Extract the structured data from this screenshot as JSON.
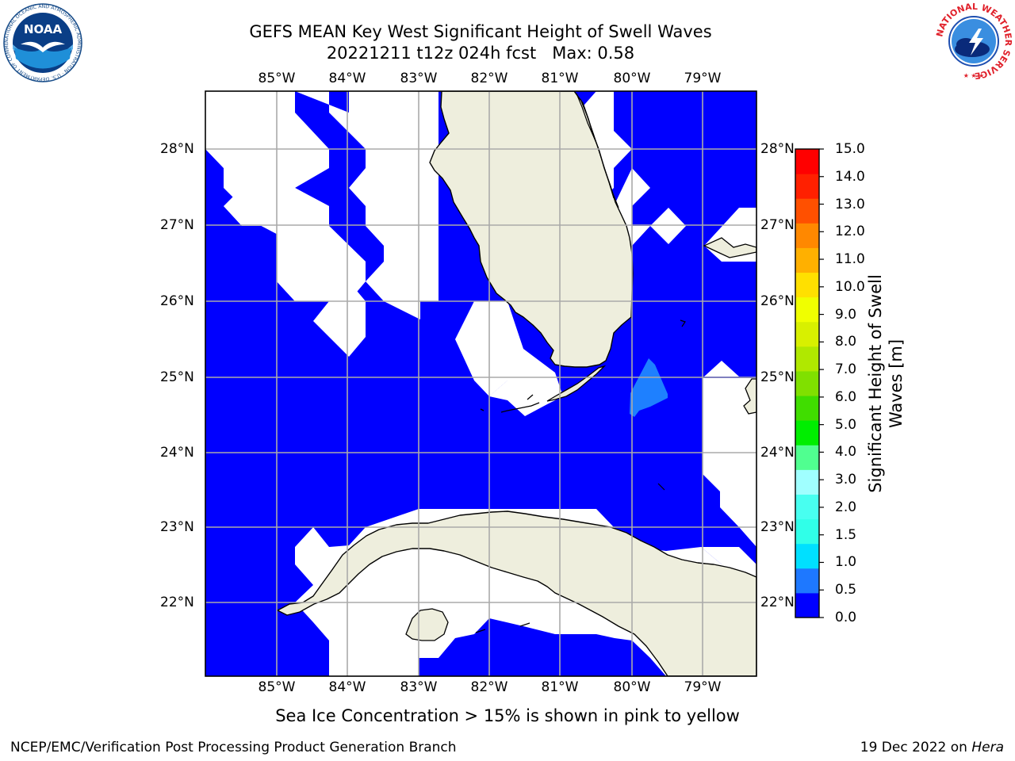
{
  "title_line1": "GEFS MEAN Key West Significant Height of Swell Waves",
  "title_line2": "20221211 t12z 024h fcst   Max: 0.58",
  "map": {
    "lon_labels": [
      "85°W",
      "84°W",
      "83°W",
      "82°W",
      "81°W",
      "80°W",
      "79°W"
    ],
    "lat_labels": [
      "28°N",
      "27°N",
      "26°N",
      "25°N",
      "24°N",
      "23°N",
      "22°N"
    ],
    "ocean_color": "#0000ff",
    "land_color": "#eeeedd",
    "no_data_color": "#ffffff",
    "highlight_color": "#1e80ff"
  },
  "colorbar": {
    "label_line1": "Significant Height of Swell",
    "label_line2": "Waves [m]",
    "ticks": [
      "15.0",
      "14.0",
      "13.0",
      "12.0",
      "11.0",
      "10.0",
      "9.0",
      "8.0",
      "7.0",
      "6.0",
      "5.0",
      "4.0",
      "3.0",
      "2.0",
      "1.5",
      "1.0",
      "0.5",
      "0.0"
    ],
    "colors": [
      "#0000ff",
      "#1e78ff",
      "#00e0ff",
      "#30ffe8",
      "#48fff0",
      "#a0ffff",
      "#50ff90",
      "#00ee00",
      "#40dd00",
      "#80e000",
      "#b0e800",
      "#d8f000",
      "#f0ff00",
      "#ffe000",
      "#ffb000",
      "#ff8800",
      "#ff5000",
      "#ff2000",
      "#ff0000"
    ]
  },
  "caption": "Sea Ice Concentration > 15% is shown in pink to yellow",
  "credit_left": "NCEP/EMC/Verification Post Processing Product Generation Branch",
  "credit_right_date": "19 Dec 2022 on ",
  "credit_right_host": "Hera",
  "logos": {
    "noaa_text": "NOAA",
    "noaa_ring_text": "NATIONAL OCEANIC AND ATMOSPHERIC ADMINISTRATION · U.S. DEPARTMENT OF COMMERCE",
    "nws_ring_text": "NATIONAL WEATHER SERVICE"
  }
}
